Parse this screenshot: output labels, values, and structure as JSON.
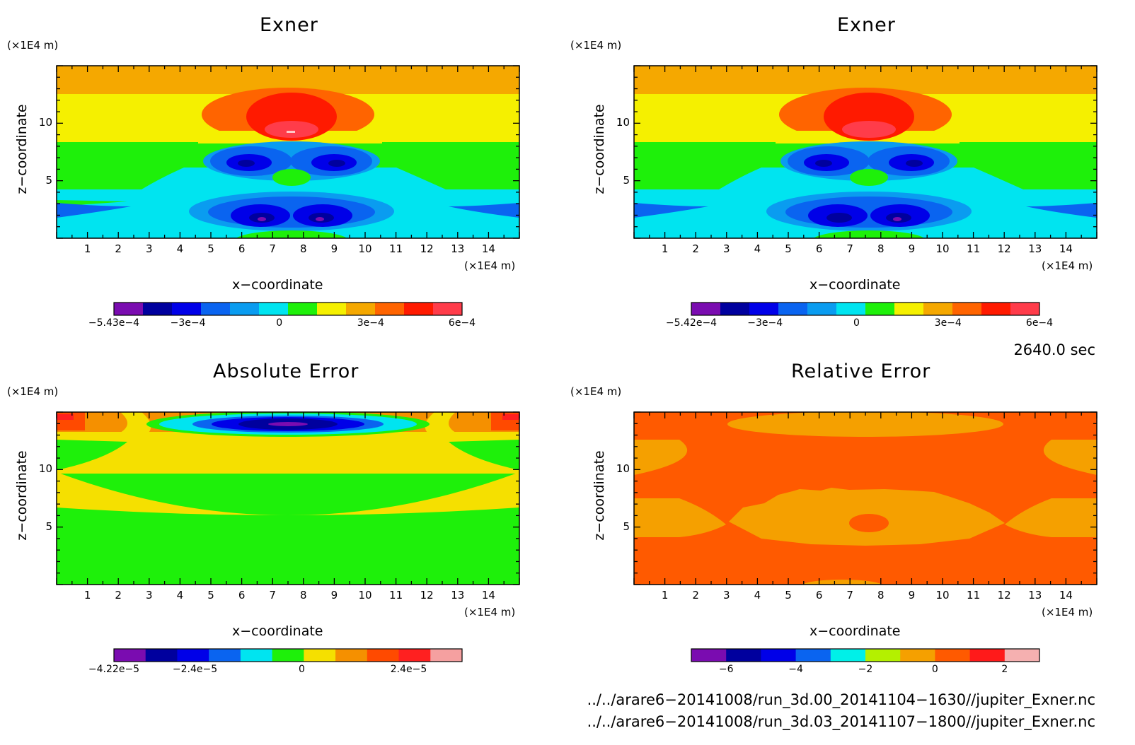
{
  "chart_data": [
    {
      "type": "heatmap",
      "title": "Exner",
      "xlabel": "x−coordinate",
      "ylabel": "z−coordinate",
      "x_unit": "(×1E4 m)",
      "z_unit": "(×1E4 m)",
      "x_range": [
        0,
        15
      ],
      "z_range": [
        0,
        15
      ],
      "x_ticks": [
        "1",
        "2",
        "3",
        "4",
        "5",
        "6",
        "7",
        "8",
        "9",
        "10",
        "11",
        "12",
        "13",
        "14"
      ],
      "z_ticks": [
        "5",
        "10"
      ],
      "colorbar": {
        "colors": [
          "#7a0cb0",
          "#00009e",
          "#0000e8",
          "#0a64f0",
          "#0a9cf0",
          "#00e4f0",
          "#1ef00a",
          "#f5f000",
          "#f5a800",
          "#ff6400",
          "#ff1a00",
          "#ff3c4a"
        ],
        "labels": [
          "−5.43e−4",
          "−3e−4",
          "0",
          "3e−4",
          "6e−4"
        ],
        "min": -0.000543,
        "max": 0.0006
      }
    },
    {
      "type": "heatmap",
      "title": "Exner",
      "xlabel": "x−coordinate",
      "ylabel": "z−coordinate",
      "x_unit": "(×1E4 m)",
      "z_unit": "(×1E4 m)",
      "x_range": [
        0,
        15
      ],
      "z_range": [
        0,
        15
      ],
      "x_ticks": [
        "1",
        "2",
        "3",
        "4",
        "5",
        "6",
        "7",
        "8",
        "9",
        "10",
        "11",
        "12",
        "13",
        "14"
      ],
      "z_ticks": [
        "5",
        "10"
      ],
      "colorbar": {
        "colors": [
          "#7a0cb0",
          "#00009e",
          "#0000e8",
          "#0a64f0",
          "#0a9cf0",
          "#00e4f0",
          "#1ef00a",
          "#f5f000",
          "#f5a800",
          "#ff6400",
          "#ff1a00",
          "#ff3c4a"
        ],
        "labels": [
          "−5.42e−4",
          "−3e−4",
          "0",
          "3e−4",
          "6e−4"
        ],
        "min": -0.000542,
        "max": 0.0006
      }
    },
    {
      "type": "heatmap",
      "title": "Absolute Error",
      "xlabel": "x−coordinate",
      "ylabel": "z−coordinate",
      "x_unit": "(×1E4 m)",
      "z_unit": "(×1E4 m)",
      "x_range": [
        0,
        15
      ],
      "z_range": [
        0,
        15
      ],
      "x_ticks": [
        "1",
        "2",
        "3",
        "4",
        "5",
        "6",
        "7",
        "8",
        "9",
        "10",
        "11",
        "12",
        "13",
        "14"
      ],
      "z_ticks": [
        "5",
        "10"
      ],
      "colorbar": {
        "colors": [
          "#7a0cb0",
          "#00009e",
          "#0000e8",
          "#0a64f0",
          "#00e4f0",
          "#1ef00a",
          "#f5e000",
          "#f59000",
          "#ff4a00",
          "#ff2020",
          "#f5a0a0"
        ],
        "labels": [
          "−4.22e−5",
          "−2.4e−5",
          "0",
          "2.4e−5"
        ],
        "min": -4.22e-05,
        "max": 3.6e-05
      }
    },
    {
      "type": "heatmap",
      "title": "Relative Error",
      "xlabel": "x−coordinate",
      "ylabel": "z−coordinate",
      "x_unit": "(×1E4 m)",
      "z_unit": "(×1E4 m)",
      "x_range": [
        0,
        15
      ],
      "z_range": [
        0,
        15
      ],
      "x_ticks": [
        "1",
        "2",
        "3",
        "4",
        "5",
        "6",
        "7",
        "8",
        "9",
        "10",
        "11",
        "12",
        "13",
        "14"
      ],
      "z_ticks": [
        "5",
        "10"
      ],
      "colorbar": {
        "colors": [
          "#7a0cb0",
          "#00009e",
          "#0000e8",
          "#0a64f0",
          "#00f0e8",
          "#b4f000",
          "#f5a000",
          "#ff5a00",
          "#ff1a1a",
          "#f5b0b0"
        ],
        "labels": [
          "−6",
          "−4",
          "−2",
          "0",
          "2"
        ],
        "min": -7,
        "max": 3
      }
    }
  ],
  "info": {
    "time": "2640.0 sec",
    "file1": "../../arare6−20141008/run_3d.00_20141104−1630//jupiter_Exner.nc",
    "file2": "../../arare6−20141008/run_3d.03_20141107−1800//jupiter_Exner.nc"
  }
}
